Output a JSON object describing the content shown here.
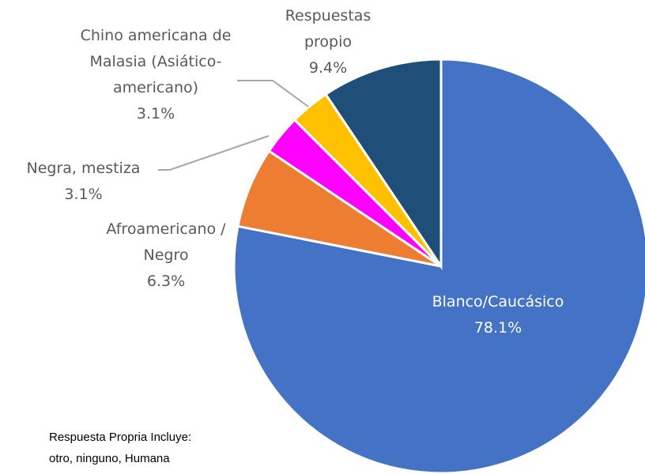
{
  "chart_data": {
    "type": "pie",
    "categories": [
      "Blanco/Caucásico",
      "Afroamericano / Negro",
      "Negra, mestiza",
      "Chino americana de Malasia (Asiático-americano)",
      "Respuestas propio"
    ],
    "values": [
      78.1,
      6.3,
      3.1,
      3.1,
      9.4
    ],
    "value_labels": [
      "78.1%",
      "6.3%",
      "3.1%",
      "3.1%",
      "9.4%"
    ],
    "colors": [
      "#4472c4",
      "#ed7d31",
      "#ff00ff",
      "#ffc000",
      "#1f4e79"
    ],
    "note": "Respuesta Propria Incluye: otro, ninguno, Humana"
  }
}
